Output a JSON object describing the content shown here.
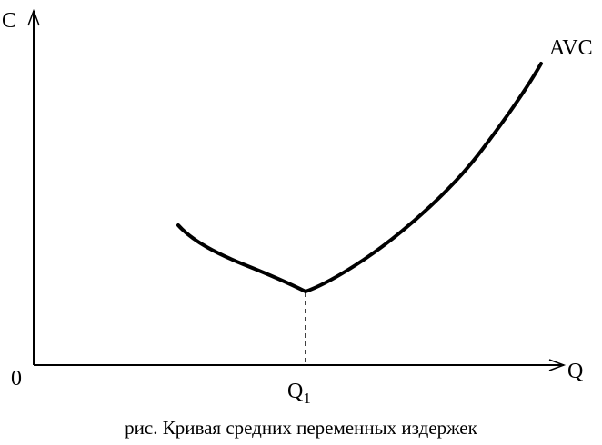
{
  "axes": {
    "y_label": "C",
    "x_label": "Q",
    "origin_label": "0"
  },
  "curve_label": "AVC",
  "q1_label": {
    "main": "Q",
    "sub": "1"
  },
  "caption": "рис. Кривая средних переменных издержек"
}
